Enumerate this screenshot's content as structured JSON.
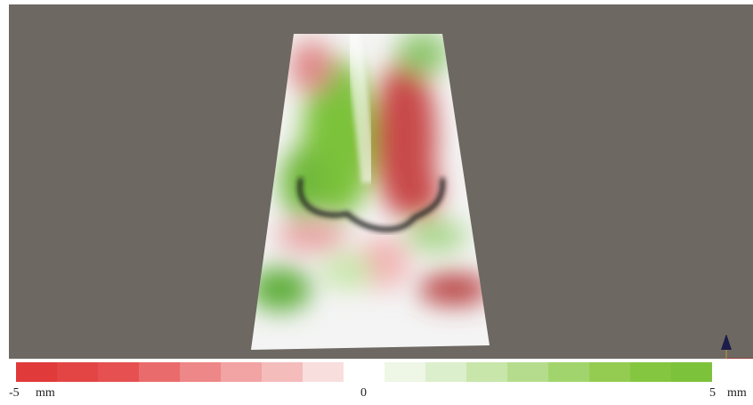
{
  "colorbar": {
    "min_label": "-5",
    "mid_label": "0",
    "max_label": "5",
    "unit": "mm"
  }
}
